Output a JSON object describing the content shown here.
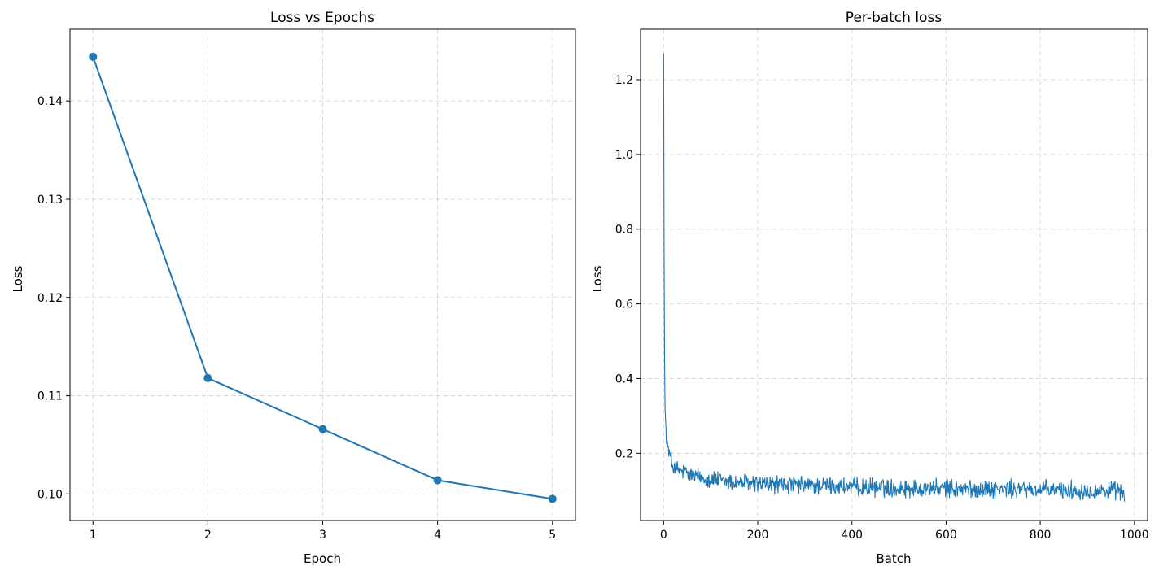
{
  "chart_data": [
    {
      "type": "line",
      "title": "Loss vs Epochs",
      "xlabel": "Epoch",
      "ylabel": "Loss",
      "xlim": [
        0.8,
        5.2
      ],
      "ylim": [
        0.0973,
        0.1473
      ],
      "xticks": [
        1,
        2,
        3,
        4,
        5
      ],
      "yticks": [
        0.1,
        0.11,
        0.12,
        0.13,
        0.14
      ],
      "ytick_labels": [
        "0.10",
        "0.11",
        "0.12",
        "0.13",
        "0.14"
      ],
      "xtick_labels": [
        "1",
        "2",
        "3",
        "4",
        "5"
      ],
      "grid": true,
      "color": "#1f77b4",
      "markers": true,
      "x": [
        1,
        2,
        3,
        4,
        5
      ],
      "y": [
        0.1445,
        0.1118,
        0.1066,
        0.1014,
        0.0995
      ]
    },
    {
      "type": "line",
      "title": "Per-batch loss",
      "xlabel": "Batch",
      "ylabel": "Loss",
      "xlim": [
        -49,
        1028
      ],
      "ylim": [
        0.02,
        1.335
      ],
      "xticks": [
        0,
        200,
        400,
        600,
        800,
        1000
      ],
      "xtick_labels": [
        "0",
        "200",
        "400",
        "600",
        "800",
        "1000"
      ],
      "yticks": [
        0.2,
        0.4,
        0.6,
        0.8,
        1.0,
        1.2
      ],
      "ytick_labels": [
        "0.2",
        "0.4",
        "0.6",
        "0.8",
        "1.0",
        "1.2"
      ],
      "grid": true,
      "color": "#1f77b4",
      "markers": false,
      "num_points": 980,
      "x": [
        0,
        1,
        2,
        3,
        5,
        8,
        12,
        16,
        20,
        30,
        40,
        60,
        80,
        100,
        150,
        200,
        250,
        300,
        350,
        400,
        450,
        500,
        550,
        600,
        650,
        700,
        750,
        800,
        850,
        900,
        950,
        979
      ],
      "y": [
        1.27,
        0.75,
        0.45,
        0.32,
        0.27,
        0.22,
        0.2,
        0.18,
        0.165,
        0.155,
        0.15,
        0.14,
        0.135,
        0.13,
        0.122,
        0.118,
        0.115,
        0.113,
        0.112,
        0.11,
        0.108,
        0.107,
        0.106,
        0.105,
        0.104,
        0.104,
        0.103,
        0.102,
        0.101,
        0.1,
        0.1,
        0.095
      ],
      "noise_amplitude": 0.02
    }
  ]
}
